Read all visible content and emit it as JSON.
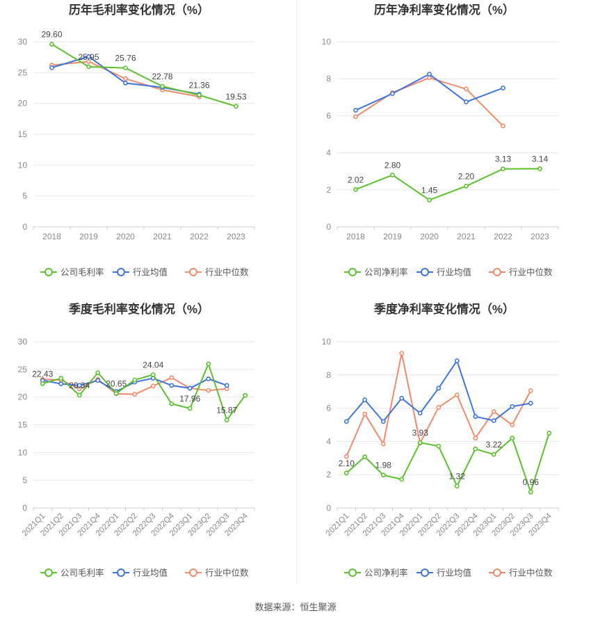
{
  "source": "数据来源：恒生聚源",
  "colors": {
    "company": "#5ac12d",
    "industry_avg": "#3d74dc",
    "industry_median": "#f1896a",
    "axis_text": "#888888",
    "grid": "#e6e6e6",
    "title": "#333333"
  },
  "chart_data": [
    {
      "type": "line",
      "title": "历年毛利率变化情况（%）",
      "categories": [
        "2018",
        "2019",
        "2020",
        "2021",
        "2022",
        "2023"
      ],
      "ylim": [
        0,
        30
      ],
      "yticks": [
        0,
        5,
        10,
        15,
        20,
        25,
        30
      ],
      "grid": true,
      "legend": "bottom",
      "series": [
        {
          "name": "公司毛利率",
          "values": [
            29.6,
            25.95,
            25.76,
            22.78,
            21.36,
            19.53
          ],
          "labels": [
            "29.60",
            "25.95",
            "25.76",
            "22.78",
            "21.36",
            "19.53"
          ]
        },
        {
          "name": "行业均值",
          "values": [
            25.8,
            27.6,
            23.3,
            22.6,
            21.5,
            null
          ]
        },
        {
          "name": "行业中位数",
          "values": [
            26.2,
            26.8,
            24.0,
            22.2,
            21.1,
            null
          ]
        }
      ]
    },
    {
      "type": "line",
      "title": "历年净利率变化情况（%）",
      "categories": [
        "2018",
        "2019",
        "2020",
        "2021",
        "2022",
        "2023"
      ],
      "ylim": [
        0,
        10
      ],
      "yticks": [
        0,
        2,
        4,
        6,
        8,
        10
      ],
      "grid": true,
      "legend": "bottom",
      "series": [
        {
          "name": "公司净利率",
          "values": [
            2.02,
            2.8,
            1.45,
            2.2,
            3.13,
            3.14
          ],
          "labels": [
            "2.02",
            "2.80",
            "1.45",
            "2.20",
            "3.13",
            "3.14"
          ]
        },
        {
          "name": "行业均值",
          "values": [
            6.3,
            7.2,
            8.25,
            6.75,
            7.5,
            null
          ]
        },
        {
          "name": "行业中位数",
          "values": [
            5.95,
            7.25,
            8.05,
            7.45,
            5.45,
            null
          ]
        }
      ]
    },
    {
      "type": "line",
      "title": "季度毛利率变化情况（%）",
      "categories": [
        "2021Q1",
        "2021Q2",
        "2021Q3",
        "2021Q4",
        "2022Q1",
        "2022Q2",
        "2022Q3",
        "2022Q4",
        "2023Q1",
        "2023Q2",
        "2023Q3",
        "2023Q4"
      ],
      "ylim": [
        0,
        30
      ],
      "yticks": [
        0,
        5,
        10,
        15,
        20,
        25,
        30
      ],
      "grid": true,
      "legend": "bottom",
      "rotate_xlabels": true,
      "series": [
        {
          "name": "公司毛利率",
          "values": [
            22.43,
            23.4,
            20.34,
            24.4,
            20.65,
            23.1,
            24.04,
            18.8,
            17.96,
            26.0,
            15.87,
            20.3
          ],
          "labels": [
            "22.43",
            "",
            "20.34",
            "",
            "20.65",
            "",
            "24.04",
            "",
            "17.96",
            "",
            "15.87",
            ""
          ]
        },
        {
          "name": "行业均值",
          "values": [
            23.0,
            22.4,
            22.1,
            23.0,
            21.0,
            22.7,
            23.4,
            22.1,
            21.6,
            23.3,
            22.1,
            null
          ]
        },
        {
          "name": "行业中位数",
          "values": [
            23.2,
            23.1,
            21.5,
            23.2,
            20.6,
            20.5,
            22.0,
            23.5,
            21.6,
            21.2,
            21.5,
            null
          ]
        }
      ]
    },
    {
      "type": "line",
      "title": "季度净利率变化情况（%）",
      "categories": [
        "2021Q1",
        "2021Q2",
        "2021Q3",
        "2021Q4",
        "2022Q1",
        "2022Q2",
        "2022Q3",
        "2022Q4",
        "2023Q1",
        "2023Q2",
        "2023Q3",
        "2023Q4"
      ],
      "ylim": [
        0,
        10
      ],
      "yticks": [
        0,
        2,
        4,
        6,
        8,
        10
      ],
      "grid": true,
      "legend": "bottom",
      "rotate_xlabels": true,
      "series": [
        {
          "name": "公司净利率",
          "values": [
            2.1,
            3.08,
            1.98,
            1.72,
            3.93,
            3.72,
            1.32,
            3.55,
            3.22,
            4.2,
            0.96,
            4.5
          ],
          "labels": [
            "2.10",
            "",
            "1.98",
            "",
            "3.93",
            "",
            "1.32",
            "",
            "3.22",
            "",
            "0.96",
            ""
          ]
        },
        {
          "name": "行业均值",
          "values": [
            5.2,
            6.5,
            5.2,
            6.6,
            5.7,
            7.2,
            8.85,
            5.5,
            5.25,
            6.1,
            6.3,
            null
          ]
        },
        {
          "name": "行业中位数",
          "values": [
            3.1,
            5.65,
            3.85,
            9.3,
            3.9,
            6.05,
            6.8,
            4.2,
            5.8,
            5.0,
            7.05,
            null
          ]
        }
      ]
    }
  ]
}
